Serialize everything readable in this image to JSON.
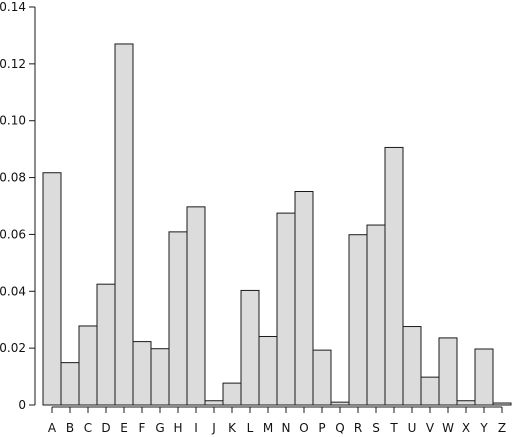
{
  "chart_data": {
    "type": "bar",
    "title": "",
    "xlabel": "",
    "ylabel": "",
    "ylim": [
      0,
      0.14
    ],
    "yticks": [
      0,
      0.02,
      0.04,
      0.06,
      0.08,
      0.1,
      0.12,
      0.14
    ],
    "ytick_labels": [
      "0",
      "0.02",
      "0.04",
      "0.06",
      "0.08",
      "0.10",
      "0.12",
      "0.14"
    ],
    "grid": false,
    "categories": [
      "A",
      "B",
      "C",
      "D",
      "E",
      "F",
      "G",
      "H",
      "I",
      "J",
      "K",
      "L",
      "M",
      "N",
      "O",
      "P",
      "Q",
      "R",
      "S",
      "T",
      "U",
      "V",
      "W",
      "X",
      "Y",
      "Z"
    ],
    "values": [
      0.0817,
      0.0149,
      0.0278,
      0.0425,
      0.127,
      0.0223,
      0.0198,
      0.0609,
      0.0697,
      0.0015,
      0.0077,
      0.0403,
      0.0241,
      0.0675,
      0.0751,
      0.0193,
      0.001,
      0.0599,
      0.0633,
      0.0906,
      0.0276,
      0.0098,
      0.0236,
      0.0015,
      0.0197,
      0.0007
    ]
  }
}
